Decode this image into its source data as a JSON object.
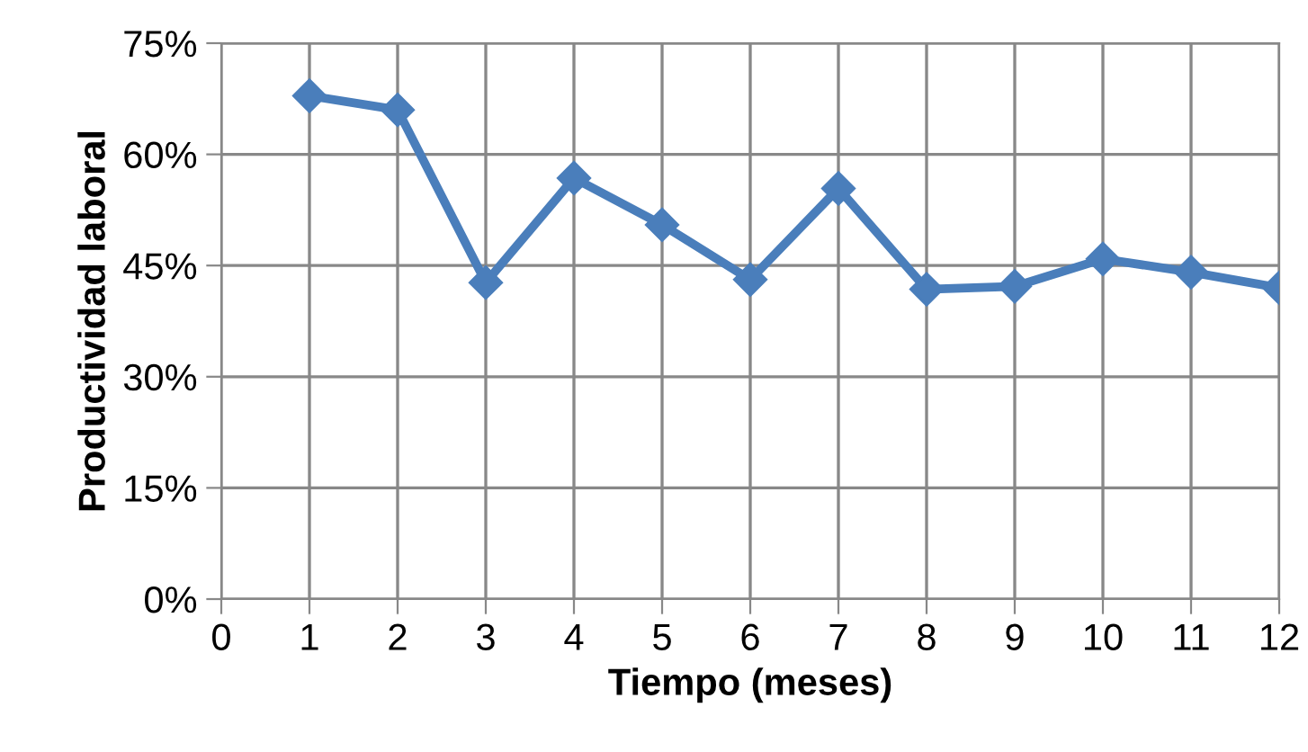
{
  "chart_data": {
    "type": "line",
    "xlabel": "Tiempo (meses)",
    "ylabel": "Productividad laboral",
    "x": [
      1,
      2,
      3,
      4,
      5,
      6,
      7,
      8,
      9,
      10,
      11,
      12
    ],
    "series": [
      {
        "color": "#4a7ebb",
        "values": [
          67.9,
          66.0,
          42.7,
          56.8,
          50.5,
          43.1,
          55.4,
          41.8,
          42.2,
          45.9,
          44.1,
          42.0
        ]
      }
    ],
    "xlim": [
      0,
      12
    ],
    "xticks": [
      0,
      1,
      2,
      3,
      4,
      5,
      6,
      7,
      8,
      9,
      10,
      11,
      12
    ],
    "ylim": [
      0,
      75
    ],
    "yticks": [
      {
        "value": 0,
        "label": "0%"
      },
      {
        "value": 15,
        "label": "15%"
      },
      {
        "value": 30,
        "label": "30%"
      },
      {
        "value": 45,
        "label": "45%"
      },
      {
        "value": 60,
        "label": "60%"
      },
      {
        "value": 75,
        "label": "75%"
      }
    ],
    "grid": true,
    "marker": "diamond",
    "line_style": "solid"
  }
}
